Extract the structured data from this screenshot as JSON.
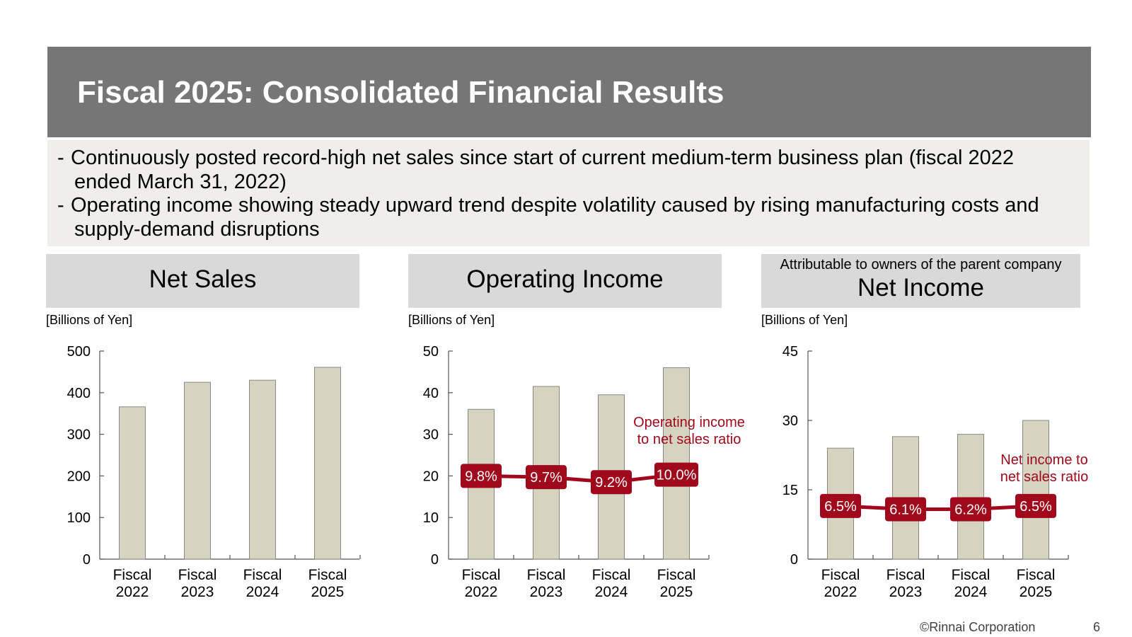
{
  "title": "Fiscal 2025: Consolidated Financial Results",
  "summary": {
    "bullets": [
      "Continuously posted record-high net sales since start of current medium-term business plan (fiscal 2022 ended March 31, 2022)",
      "Operating income showing steady upward trend despite volatility caused by rising manufacturing costs and supply-demand disruptions"
    ],
    "dash": "-"
  },
  "colors": {
    "banner": "#767676",
    "bar_fill": "#d6d3c0",
    "bar_stroke": "#8a8a80",
    "ratio_line": "#a0091c",
    "header_bg": "#d9d9d9",
    "summary_bg": "#efeeea"
  },
  "chart_data": [
    {
      "type": "bar",
      "title": "Net Sales",
      "subtitle": "",
      "ylabel": "[Billions of Yen]",
      "categories": [
        "Fiscal\n2022",
        "Fiscal\n2023",
        "Fiscal\n2024",
        "Fiscal\n2025"
      ],
      "category_lines": [
        [
          "Fiscal",
          "2022"
        ],
        [
          "Fiscal",
          "2023"
        ],
        [
          "Fiscal",
          "2024"
        ],
        [
          "Fiscal",
          "2025"
        ]
      ],
      "values": [
        366,
        425,
        430,
        461
      ],
      "ylim": [
        0,
        500
      ],
      "yticks": [
        0,
        100,
        200,
        300,
        400,
        500
      ],
      "ratio_series": null
    },
    {
      "type": "bar",
      "title": "Operating Income",
      "subtitle": "",
      "ylabel": "[Billions of Yen]",
      "categories": [
        "Fiscal\n2022",
        "Fiscal\n2023",
        "Fiscal\n2024",
        "Fiscal\n2025"
      ],
      "category_lines": [
        [
          "Fiscal",
          "2022"
        ],
        [
          "Fiscal",
          "2023"
        ],
        [
          "Fiscal",
          "2024"
        ],
        [
          "Fiscal",
          "2025"
        ]
      ],
      "values": [
        36,
        41.5,
        39.5,
        46
      ],
      "ylim": [
        0,
        50
      ],
      "yticks": [
        0,
        10,
        20,
        30,
        40,
        50
      ],
      "ratio_series": {
        "name": "Operating income to net sales ratio",
        "label_lines": [
          "Operating income",
          "to net sales ratio"
        ],
        "values": [
          9.8,
          9.7,
          9.2,
          10.0
        ],
        "labels": [
          "9.8%",
          "9.7%",
          "9.2%",
          "10.0%"
        ],
        "plot_levels": [
          20.0,
          19.7,
          18.5,
          20.3
        ]
      }
    },
    {
      "type": "bar",
      "title": "Net Income",
      "subtitle": "Attributable to owners of the parent company",
      "ylabel": "[Billions of Yen]",
      "categories": [
        "Fiscal\n2022",
        "Fiscal\n2023",
        "Fiscal\n2024",
        "Fiscal\n2025"
      ],
      "category_lines": [
        [
          "Fiscal",
          "2022"
        ],
        [
          "Fiscal",
          "2023"
        ],
        [
          "Fiscal",
          "2024"
        ],
        [
          "Fiscal",
          "2025"
        ]
      ],
      "values": [
        24,
        26.5,
        27,
        30
      ],
      "ylim": [
        0,
        45
      ],
      "yticks": [
        0,
        15,
        30,
        45
      ],
      "ratio_series": {
        "name": "Net income to net sales ratio",
        "label_lines": [
          "Net income to",
          "net sales ratio"
        ],
        "values": [
          6.5,
          6.1,
          6.2,
          6.5
        ],
        "labels": [
          "6.5%",
          "6.1%",
          "6.2%",
          "6.5%"
        ],
        "plot_levels": [
          11.5,
          10.8,
          10.8,
          11.5
        ]
      }
    }
  ],
  "footer": {
    "copyright": "©Rinnai Corporation",
    "page_number": "6"
  }
}
